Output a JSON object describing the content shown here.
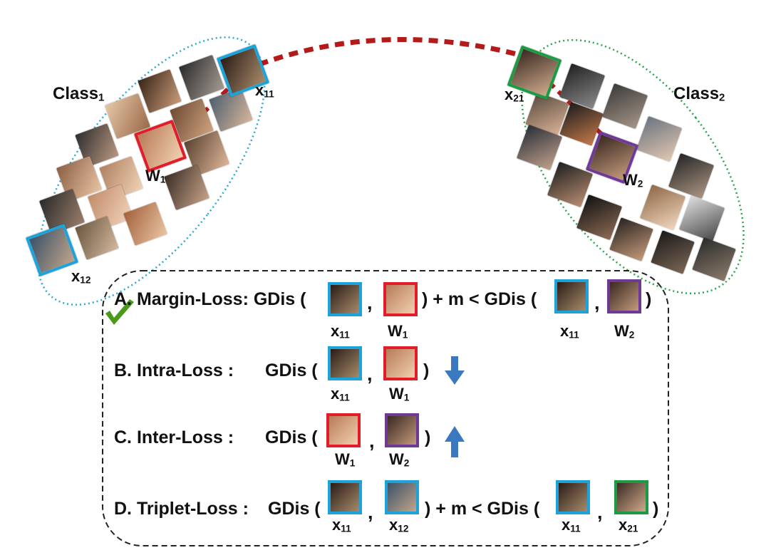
{
  "colors": {
    "x11": "#1da3d9",
    "x12": "#1da3d9",
    "x21": "#1e9a45",
    "w1": "#e11d2a",
    "w2": "#6f3a97",
    "class1_ellipse": "#2aa8d6",
    "class2_ellipse": "#2ba24c",
    "connector": "#b51a1a",
    "arrow": "#3a78c0",
    "check": "#4a9a1a"
  },
  "labels": {
    "class1": "Class",
    "class1_sub": "1",
    "class2": "Class",
    "class2_sub": "2",
    "x": "x",
    "x11_sub": "11",
    "x12_sub": "12",
    "x21_sub": "21",
    "w": "W",
    "w1_sub": "1",
    "w2_sub": "2"
  },
  "losses": {
    "a": {
      "label": "A. Margin-Loss: GDis (",
      "close": ") + m < GDis (",
      "end": ")",
      "comma": ","
    },
    "b": {
      "label": "B. Intra-Loss :",
      "gdis": "GDis (",
      "end": ")",
      "comma": ",",
      "arrow": "down-arrow-icon"
    },
    "c": {
      "label": "C. Inter-Loss :",
      "gdis": "GDis (",
      "end": ")",
      "comma": ",",
      "arrow": "up-arrow-icon"
    },
    "d": {
      "label": "D. Triplet-Loss :",
      "gdis": "GDis (",
      "close": ") + m < GDis (",
      "end": ")",
      "comma": ","
    }
  },
  "icons": {
    "check": "check-mark-icon"
  }
}
